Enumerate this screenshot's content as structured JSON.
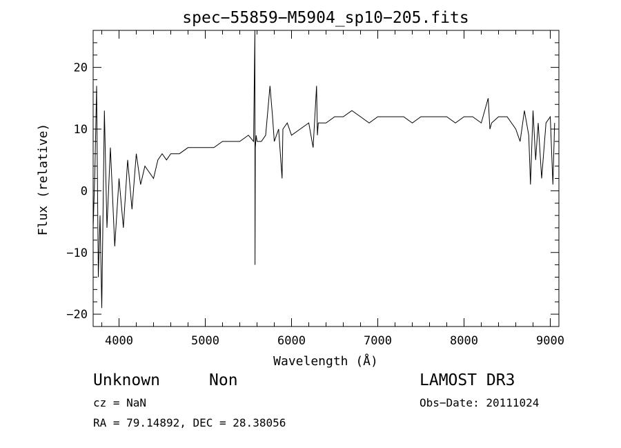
{
  "chart_data": {
    "type": "line",
    "title": "spec−55859−M5904_sp10−205.fits",
    "xlabel": "Wavelength (Å)",
    "ylabel": "Flux (relative)",
    "xlim": [
      3700,
      9100
    ],
    "ylim": [
      -22,
      26
    ],
    "xticks": [
      4000,
      5000,
      6000,
      7000,
      8000,
      9000
    ],
    "xtick_labels": [
      "4000",
      "5000",
      "6000",
      "7000",
      "8000",
      "9000"
    ],
    "yticks": [
      -20,
      -10,
      0,
      10,
      20
    ],
    "ytick_labels": [
      "−20",
      "−10",
      "0",
      "10",
      "20"
    ],
    "grid": false,
    "series": [
      {
        "name": "spectrum",
        "x": [
          3700,
          3720,
          3740,
          3760,
          3780,
          3800,
          3830,
          3860,
          3900,
          3950,
          4000,
          4050,
          4100,
          4150,
          4200,
          4250,
          4300,
          4350,
          4400,
          4450,
          4500,
          4550,
          4600,
          4700,
          4800,
          4900,
          5000,
          5100,
          5200,
          5300,
          5400,
          5500,
          5560,
          5575,
          5577,
          5580,
          5590,
          5600,
          5650,
          5700,
          5750,
          5780,
          5800,
          5850,
          5890,
          5900,
          5950,
          6000,
          6100,
          6200,
          6250,
          6290,
          6300,
          6310,
          6400,
          6500,
          6600,
          6700,
          6800,
          6900,
          7000,
          7100,
          7200,
          7300,
          7400,
          7500,
          7600,
          7700,
          7800,
          7900,
          8000,
          8100,
          8200,
          8280,
          8300,
          8320,
          8400,
          8500,
          8600,
          8650,
          8700,
          8750,
          8770,
          8800,
          8830,
          8860,
          8900,
          8950,
          9000,
          9030,
          9050
        ],
        "y": [
          -6,
          3,
          17,
          -14,
          -4,
          -19,
          13,
          -6,
          7,
          -9,
          2,
          -6,
          5,
          -3,
          6,
          1,
          4,
          3,
          2,
          5,
          6,
          5,
          6,
          6,
          7,
          7,
          7,
          7,
          8,
          8,
          8,
          9,
          8,
          26,
          -12,
          7,
          9,
          8,
          8,
          9,
          17,
          12,
          8,
          10,
          2,
          10,
          11,
          9,
          10,
          11,
          7,
          17,
          9,
          11,
          11,
          12,
          12,
          13,
          12,
          11,
          12,
          12,
          12,
          12,
          11,
          12,
          12,
          12,
          12,
          11,
          12,
          12,
          11,
          15,
          10,
          11,
          12,
          12,
          10,
          8,
          13,
          9,
          1,
          13,
          5,
          11,
          2,
          11,
          12,
          1,
          11
        ]
      }
    ]
  },
  "footer": {
    "object_type": "Unknown",
    "object_class": "Non",
    "survey": "LAMOST DR3",
    "cz": "cz = NaN",
    "obs_date": "Obs−Date: 20111024",
    "coords": "RA =  79.14892, DEC =  28.38056"
  }
}
